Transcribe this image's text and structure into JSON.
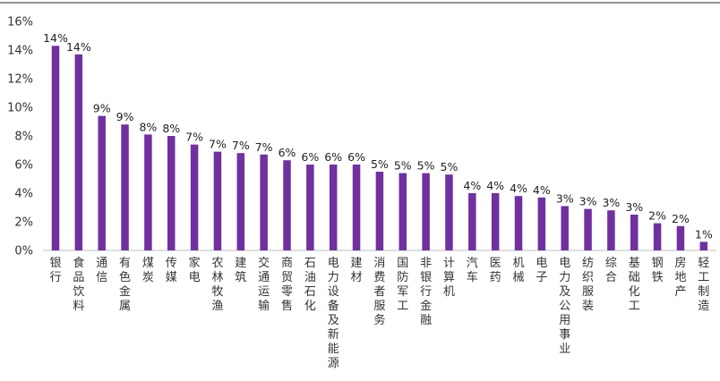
{
  "colors": {
    "bar": "#7030A0",
    "axis": "#bfbfbf",
    "text": "#333333"
  },
  "chart_data": {
    "type": "bar",
    "title": "",
    "xlabel": "",
    "ylabel": "",
    "ylim": [
      0,
      16
    ],
    "yticks": [
      0,
      2,
      4,
      6,
      8,
      10,
      12,
      14,
      16
    ],
    "ytick_labels": [
      "0%",
      "2%",
      "4%",
      "6%",
      "8%",
      "10%",
      "12%",
      "14%",
      "16%"
    ],
    "grid": false,
    "legend": "none",
    "categories": [
      "银行",
      "食品饮料",
      "通信",
      "有色金属",
      "煤炭",
      "传媒",
      "家电",
      "农林牧渔",
      "建筑",
      "交通运输",
      "商贸零售",
      "石油石化",
      "电力设备及新能源",
      "建材",
      "消费者服务",
      "国防军工",
      "非银行金融",
      "计算机",
      "汽车",
      "医药",
      "机械",
      "电子",
      "电力及公用事业",
      "纺织服装",
      "综合",
      "基础化工",
      "钢铁",
      "房地产",
      "轻工制造"
    ],
    "values": [
      14.3,
      13.7,
      9.4,
      8.8,
      8.1,
      8.0,
      7.4,
      6.9,
      6.8,
      6.7,
      6.3,
      6.0,
      6.0,
      6.0,
      5.5,
      5.4,
      5.4,
      5.3,
      4.0,
      4.0,
      3.8,
      3.7,
      3.1,
      2.9,
      2.8,
      2.5,
      1.9,
      1.7,
      0.6
    ],
    "data_labels": [
      "14%",
      "14%",
      "9%",
      "9%",
      "8%",
      "8%",
      "7%",
      "7%",
      "7%",
      "7%",
      "6%",
      "6%",
      "6%",
      "6%",
      "5%",
      "5%",
      "5%",
      "5%",
      "4%",
      "4%",
      "4%",
      "4%",
      "3%",
      "3%",
      "3%",
      "3%",
      "2%",
      "2%",
      "1%"
    ]
  }
}
